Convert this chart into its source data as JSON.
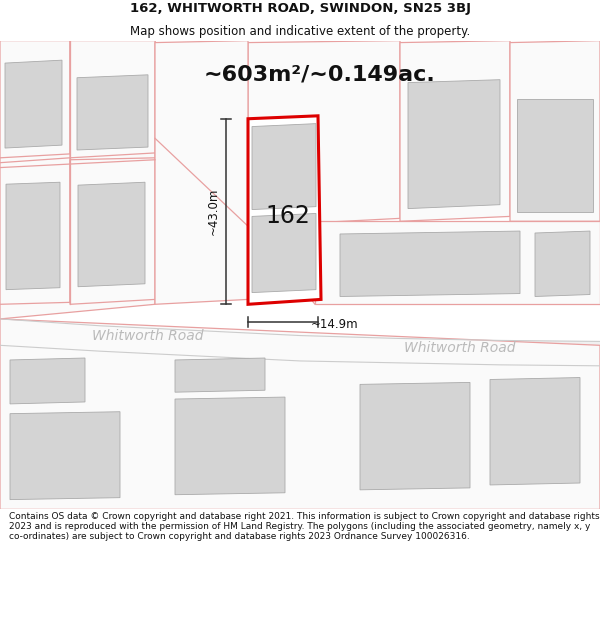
{
  "title": "162, WHITWORTH ROAD, SWINDON, SN25 3BJ",
  "subtitle": "Map shows position and indicative extent of the property.",
  "area_text": "~603m²/~0.149ac.",
  "dim_height": "~43.0m",
  "dim_width": "~14.9m",
  "label_162": "162",
  "road_label1": "Whitworth Road",
  "road_label2": "Whitworth Road",
  "footer": "Contains OS data © Crown copyright and database right 2021. This information is subject to Crown copyright and database rights 2023 and is reproduced with the permission of HM Land Registry. The polygons (including the associated geometry, namely x, y co-ordinates) are subject to Crown copyright and database rights 2023 Ordnance Survey 100026316.",
  "bg_color": "#ffffff",
  "map_bg": "#ffffff",
  "building_fill": "#d4d4d4",
  "building_edge": "#aaaaaa",
  "parcel_line_color": "#e8a0a0",
  "plot_fill": "#ffffff",
  "plot_border": "#dd0000",
  "road_fill": "#f0f0f0",
  "road_edge": "#cccccc",
  "dim_color": "#333333",
  "road_text_color": "#bbbbbb",
  "title_fontsize": 9.5,
  "subtitle_fontsize": 8.5,
  "area_fontsize": 16,
  "label_fontsize": 17,
  "road_fontsize": 10,
  "footer_fontsize": 6.5,
  "dim_fontsize": 8.5
}
